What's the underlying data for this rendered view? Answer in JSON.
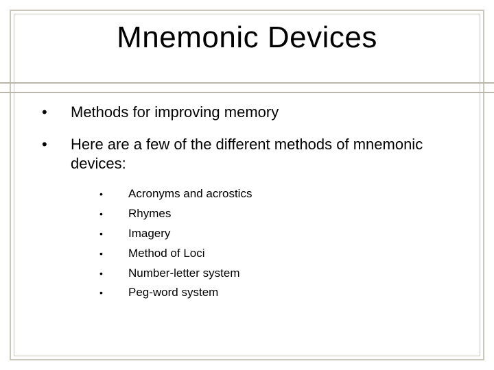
{
  "slide": {
    "title": "Mnemonic Devices",
    "title_fontsize": 44,
    "title_color": "#000000",
    "background_color": "#ffffff",
    "frame_color": "#c9c6bd",
    "divider_color": "#b8b5ab",
    "body_fontsize": 22,
    "sub_fontsize": 17,
    "bullet_glyph": "•",
    "main_points": [
      {
        "text": "Methods for improving memory"
      },
      {
        "text": "Here are a few of the different methods of mnemonic devices:"
      }
    ],
    "sub_points": [
      {
        "text": "Acronyms and acrostics"
      },
      {
        "text": "Rhymes"
      },
      {
        "text": "Imagery"
      },
      {
        "text": "Method of Loci"
      },
      {
        "text": "Number-letter system"
      },
      {
        "text": "Peg-word system"
      }
    ]
  }
}
